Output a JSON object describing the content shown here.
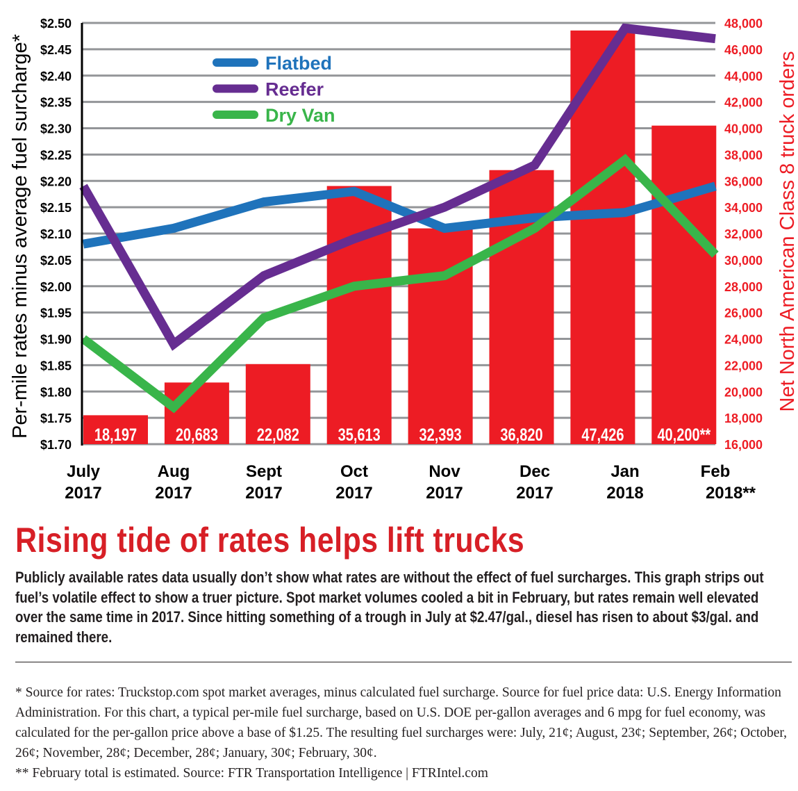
{
  "chart_data": {
    "type": "bar+line",
    "categories": [
      "July 2017",
      "Aug 2017",
      "Sept 2017",
      "Oct 2017",
      "Nov 2017",
      "Dec 2017",
      "Jan 2018",
      "Feb 2018**"
    ],
    "category_labels": [
      [
        "July",
        "2017"
      ],
      [
        "Aug",
        "2017"
      ],
      [
        "Sept",
        "2017"
      ],
      [
        "Oct",
        "2017"
      ],
      [
        "Nov",
        "2017"
      ],
      [
        "Dec",
        "2017"
      ],
      [
        "Jan",
        "2018"
      ],
      [
        "Feb",
        "2018**"
      ]
    ],
    "ylabel_left": "Per-mile rates minus average fuel surcharge*",
    "ylabel_right": "Net North American Class 8 truck orders",
    "ylim_left": [
      1.7,
      2.5
    ],
    "ylim_right": [
      16000,
      48000
    ],
    "left_ticks": [
      "$1.70",
      "$1.75",
      "$1.80",
      "$1.85",
      "$1.90",
      "$1.95",
      "$2.00",
      "$2.05",
      "$2.10",
      "$2.15",
      "$2.20",
      "$2.25",
      "$2.30",
      "$2.35",
      "$2.40",
      "$2.45",
      "$2.50"
    ],
    "right_ticks": [
      "16,000",
      "18,000",
      "20,000",
      "22,000",
      "24,000",
      "26,000",
      "28,000",
      "30,000",
      "32,000",
      "34,000",
      "36,000",
      "38,000",
      "40,000",
      "42,000",
      "44,000",
      "46,000",
      "48,000"
    ],
    "grid": true,
    "legend_position": "top-left",
    "bars": {
      "color": "#ed1c24",
      "values": [
        18197,
        20683,
        22082,
        35613,
        32393,
        36820,
        47426,
        40200
      ],
      "labels": [
        "18,197",
        "20,683",
        "22,082",
        "35,613",
        "32,393",
        "36,820",
        "47,426",
        "40,200**"
      ]
    },
    "series": [
      {
        "name": "Flatbed",
        "color": "#1f73bb",
        "values": [
          2.08,
          2.11,
          2.16,
          2.18,
          2.11,
          2.13,
          2.14,
          2.19
        ]
      },
      {
        "name": "Reefer",
        "color": "#662d91",
        "values": [
          2.19,
          1.89,
          2.02,
          2.09,
          2.15,
          2.23,
          2.49,
          2.47
        ]
      },
      {
        "name": "Dry Van",
        "color": "#39b54a",
        "values": [
          1.9,
          1.77,
          1.94,
          2.0,
          2.02,
          2.11,
          2.24,
          2.06
        ]
      }
    ]
  },
  "article": {
    "headline": "Rising tide of rates helps lift trucks",
    "body": "Publicly available rates data usually don’t show what rates are without the effect of fuel surcharges. This graph strips out fuel’s volatile effect to show a truer picture. Spot market volumes cooled a bit in February, but rates remain well elevated over the same time in 2017. Since hitting something of a trough in July at $2.47/gal., diesel has risen to about $3/gal. and remained there.",
    "footnote1": "* Source for rates: Truckstop.com spot market averages, minus calculated fuel surcharge. Source for fuel price data: U.S. Energy Information Administration. For this chart, a typical per-mile fuel surcharge, based on U.S. DOE per-gallon averages and 6 mpg for fuel economy, was calculated for the per-gallon price above a base of $1.25. The resulting fuel surcharges were: July, 21¢; August, 23¢; September, 26¢; October, 26¢; November, 28¢; December, 28¢; January, 30¢; February, 30¢.",
    "footnote2": "** February total is estimated. Source: FTR Transportation Intelligence | FTRIntel.com"
  }
}
